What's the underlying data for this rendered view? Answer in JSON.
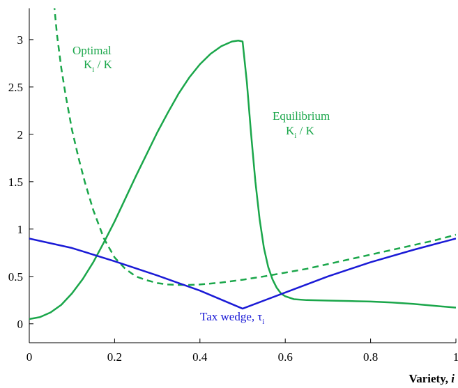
{
  "chart_data": {
    "type": "line",
    "xlabel": "Variety, ",
    "xlabel_var": "i",
    "xlim": [
      0,
      1
    ],
    "ylim": [
      -0.2,
      3.33
    ],
    "x_ticks": [
      0,
      0.2,
      0.4,
      0.6,
      0.8,
      1
    ],
    "x_tick_labels": [
      "0",
      "0.2",
      "0.4",
      "0.6",
      "0.8",
      "1"
    ],
    "y_ticks": [
      0,
      0.5,
      1,
      1.5,
      2,
      2.5,
      3
    ],
    "y_tick_labels": [
      "0",
      "0.5",
      "1",
      "1.5",
      "2",
      "2.5",
      "3"
    ],
    "grid": false,
    "series": [
      {
        "key": "equilibrium",
        "color": "#1aa64a",
        "style": "solid",
        "x": [
          0,
          0.025,
          0.05,
          0.075,
          0.1,
          0.125,
          0.15,
          0.175,
          0.2,
          0.225,
          0.25,
          0.275,
          0.3,
          0.325,
          0.35,
          0.375,
          0.4,
          0.425,
          0.45,
          0.475,
          0.49,
          0.5,
          0.51,
          0.52,
          0.53,
          0.54,
          0.55,
          0.56,
          0.57,
          0.58,
          0.59,
          0.6,
          0.62,
          0.65,
          0.7,
          0.75,
          0.8,
          0.85,
          0.9,
          0.95,
          1
        ],
        "y": [
          0.05,
          0.07,
          0.12,
          0.2,
          0.32,
          0.47,
          0.65,
          0.86,
          1.08,
          1.32,
          1.56,
          1.79,
          2.02,
          2.23,
          2.43,
          2.6,
          2.74,
          2.85,
          2.93,
          2.98,
          2.99,
          2.98,
          2.55,
          2.0,
          1.5,
          1.1,
          0.8,
          0.6,
          0.47,
          0.38,
          0.32,
          0.29,
          0.26,
          0.25,
          0.245,
          0.24,
          0.235,
          0.225,
          0.21,
          0.19,
          0.17
        ]
      },
      {
        "key": "optimal",
        "color": "#1aa64a",
        "style": "dashed",
        "x": [
          0.058,
          0.065,
          0.075,
          0.085,
          0.1,
          0.115,
          0.13,
          0.15,
          0.175,
          0.2,
          0.225,
          0.25,
          0.275,
          0.3,
          0.325,
          0.35,
          0.375,
          0.4,
          0.45,
          0.5,
          0.55,
          0.6,
          0.65,
          0.7,
          0.75,
          0.8,
          0.85,
          0.9,
          0.95,
          1
        ],
        "y": [
          3.38,
          3.05,
          2.7,
          2.42,
          2.05,
          1.76,
          1.5,
          1.2,
          0.9,
          0.7,
          0.58,
          0.5,
          0.46,
          0.43,
          0.415,
          0.41,
          0.41,
          0.415,
          0.435,
          0.465,
          0.5,
          0.54,
          0.58,
          0.63,
          0.68,
          0.73,
          0.78,
          0.83,
          0.88,
          0.94
        ]
      },
      {
        "key": "tax_wedge",
        "color": "#1a1ad6",
        "style": "solid",
        "x": [
          0,
          0.1,
          0.2,
          0.3,
          0.4,
          0.5,
          0.6,
          0.7,
          0.8,
          0.9,
          1
        ],
        "y": [
          0.9,
          0.8,
          0.66,
          0.51,
          0.35,
          0.16,
          0.33,
          0.5,
          0.65,
          0.78,
          0.9
        ]
      }
    ],
    "annotations": {
      "optimal": {
        "line1": "Optimal",
        "k": "K",
        "sub": "i",
        "rest": " / K"
      },
      "equilibrium": {
        "line1": "Equilibrium",
        "k": "K",
        "sub": "i",
        "rest": " / K"
      },
      "tax_wedge": {
        "text": "Tax wedge, ",
        "tau": "τ",
        "sub": "i"
      }
    }
  }
}
